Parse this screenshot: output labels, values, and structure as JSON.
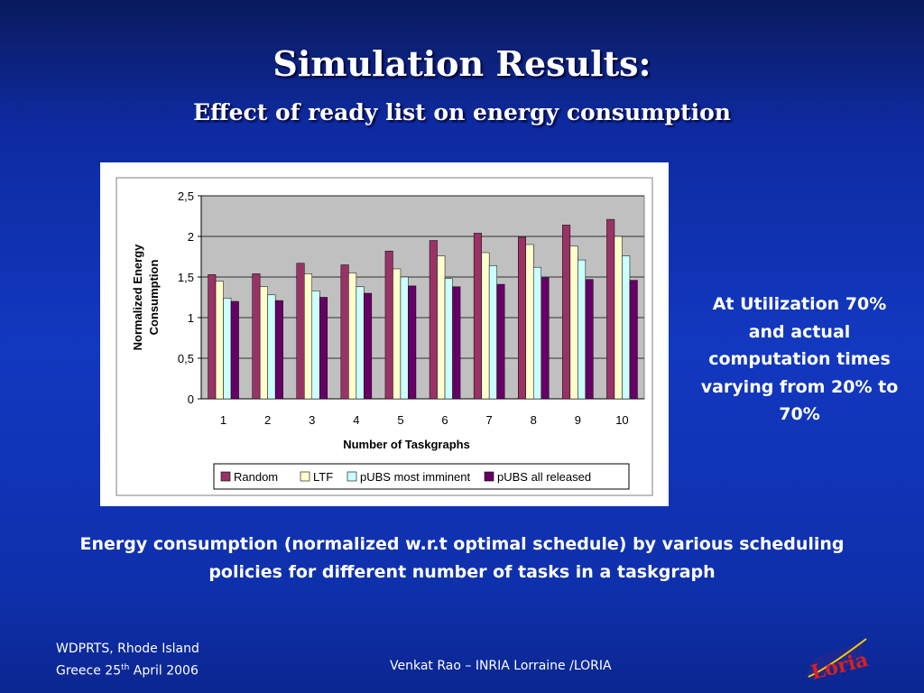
{
  "slide": {
    "title": "Simulation Results:",
    "subtitle": "Effect of ready list on energy consumption",
    "side_note": "At Utilization 70% and actual computation times varying from 20% to 70%",
    "caption": "Energy consumption (normalized w.r.t optimal schedule) by various scheduling policies for different number of tasks in a taskgraph",
    "footer_left_line1": "WDPRTS, Rhode Island",
    "footer_left_line2_prefix": "Greece 25",
    "footer_left_line2_sup": "th",
    "footer_left_line2_suffix": " April 2006",
    "footer_center": "Venkat Rao – INRIA Lorraine /LORIA",
    "logo_text": "Loria"
  },
  "colors": {
    "background": "#1238c0",
    "plot_area": "#c0c0c0",
    "text": "#ffffff"
  },
  "chart_data": {
    "type": "bar",
    "xlabel": "Number of Taskgraphs",
    "ylabel": "Normalized Energy Consumption",
    "ylim": [
      0,
      2.5
    ],
    "yticks": [
      "0",
      "0,5",
      "1",
      "1,5",
      "2",
      "2,5"
    ],
    "grid": true,
    "legend_position": "bottom",
    "categories": [
      "1",
      "2",
      "3",
      "4",
      "5",
      "6",
      "7",
      "8",
      "9",
      "10"
    ],
    "series": [
      {
        "name": "Random",
        "color": "#993366",
        "values": [
          1.53,
          1.54,
          1.67,
          1.65,
          1.82,
          1.95,
          2.04,
          1.99,
          2.14,
          2.21
        ]
      },
      {
        "name": "LTF",
        "color": "#ffffcc",
        "values": [
          1.45,
          1.38,
          1.54,
          1.55,
          1.6,
          1.76,
          1.8,
          1.9,
          1.88,
          2.0
        ]
      },
      {
        "name": "pUBS most imminent",
        "color": "#ccffff",
        "values": [
          1.24,
          1.28,
          1.33,
          1.38,
          1.5,
          1.48,
          1.64,
          1.62,
          1.71,
          1.76
        ]
      },
      {
        "name": "pUBS all released",
        "color": "#660066",
        "values": [
          1.2,
          1.21,
          1.25,
          1.3,
          1.39,
          1.38,
          1.41,
          1.49,
          1.47,
          1.46
        ]
      }
    ]
  }
}
